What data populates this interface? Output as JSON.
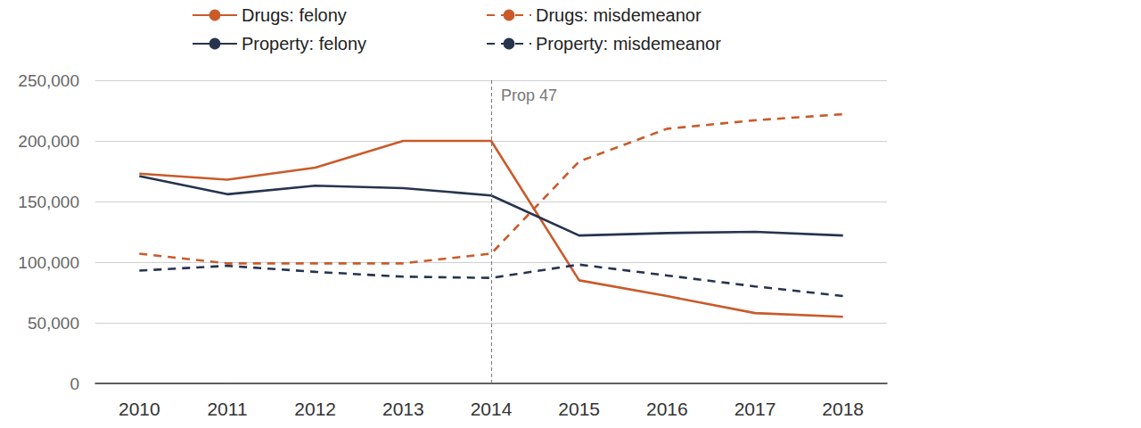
{
  "chart_data": {
    "type": "line",
    "categories": [
      "2010",
      "2011",
      "2012",
      "2013",
      "2014",
      "2015",
      "2016",
      "2017",
      "2018"
    ],
    "series": [
      {
        "name": "Drugs: felony",
        "color": "#c95b2b",
        "line_style": "solid",
        "values": [
          173000,
          168000,
          178000,
          200000,
          200000,
          85000,
          72000,
          58000,
          55000
        ]
      },
      {
        "name": "Drugs: misdemeanor",
        "color": "#c95b2b",
        "line_style": "dashed",
        "values": [
          107000,
          99000,
          99000,
          99000,
          107000,
          183000,
          210000,
          217000,
          222000
        ]
      },
      {
        "name": "Property: felony",
        "color": "#27344e",
        "line_style": "solid",
        "values": [
          171000,
          156000,
          163000,
          161000,
          155000,
          122000,
          124000,
          125000,
          122000
        ]
      },
      {
        "name": "Property: misdemeanor",
        "color": "#27344e",
        "line_style": "dashed",
        "values": [
          93000,
          97000,
          92000,
          88000,
          87000,
          98000,
          89000,
          80000,
          72000
        ]
      }
    ],
    "ylim": [
      0,
      250000
    ],
    "yticks": [
      0,
      {
        "value": 50000,
        "label": "50,000"
      },
      {
        "value": 100000,
        "label": "100,000"
      },
      {
        "value": 150000,
        "label": "150,000"
      },
      {
        "value": 200000,
        "label": "200,000"
      },
      {
        "value": 250000,
        "label": "250,000"
      }
    ],
    "grid": true,
    "annotations": [
      {
        "x": "2014",
        "text": "Prop 47"
      }
    ]
  }
}
